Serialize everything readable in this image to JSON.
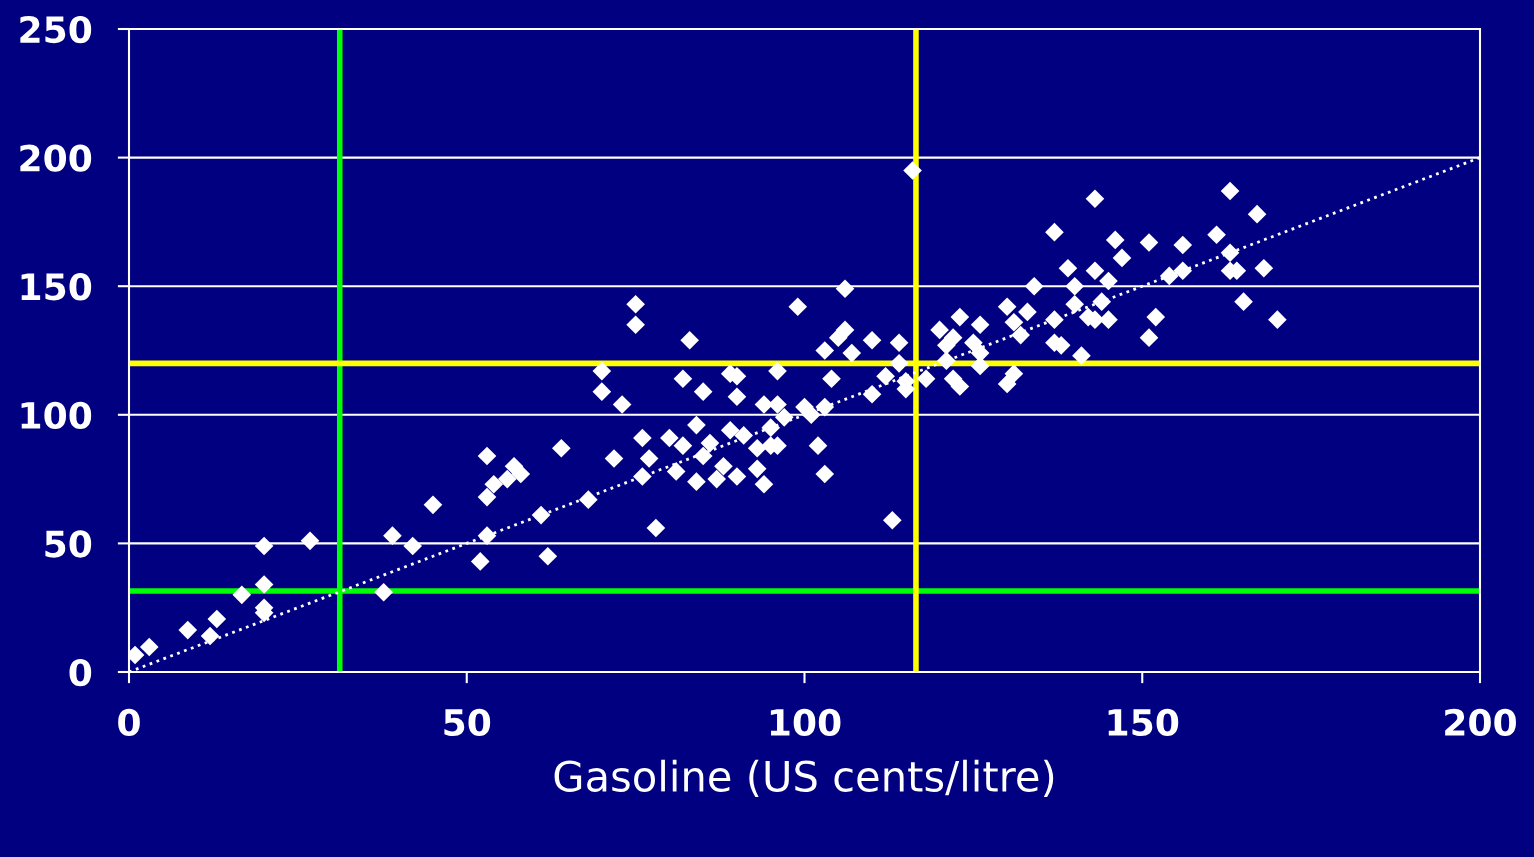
{
  "chart_data": {
    "type": "scatter",
    "xlabel": "Gasoline (US cents/litre)",
    "xlim": [
      0,
      200
    ],
    "xticks": [
      0,
      50,
      100,
      150,
      200
    ],
    "ylim": [
      0,
      250
    ],
    "yticks": [
      0,
      50,
      100,
      150,
      200,
      250
    ],
    "grid": "y",
    "marker": "diamond",
    "legend": false,
    "series": [
      {
        "color": "#ffffff",
        "x": [
          0.9,
          3,
          8.7,
          12,
          13,
          16.7,
          20,
          20,
          20,
          20,
          26.8,
          37.7,
          39,
          42,
          45,
          52,
          53,
          53,
          53,
          54,
          56,
          57,
          58,
          61,
          62,
          64,
          68,
          70,
          70,
          71.8,
          73,
          75,
          75,
          76,
          76,
          77,
          78,
          80,
          81,
          82,
          82,
          83,
          84,
          84,
          85,
          85,
          86,
          87,
          88,
          89,
          90,
          90,
          89,
          90,
          91,
          93,
          93,
          94,
          94,
          95,
          96,
          95,
          96,
          96,
          97,
          99,
          100,
          101,
          102,
          103,
          103,
          103,
          104,
          105,
          106,
          106,
          107,
          110,
          110,
          112,
          113,
          114,
          114,
          115,
          115,
          116,
          118,
          120,
          121,
          121,
          122,
          122,
          123,
          123,
          125,
          126,
          126,
          126,
          130,
          130,
          131,
          131,
          132,
          133,
          134,
          137,
          137,
          137,
          138,
          139,
          140,
          140,
          141,
          142,
          143,
          143,
          143,
          144,
          145,
          145,
          146,
          147,
          151,
          151,
          152,
          154,
          156,
          156,
          161,
          163,
          163,
          163,
          164,
          165,
          167,
          168,
          170
        ],
        "values": [
          6.6,
          9.7,
          16.3,
          14,
          20.6,
          30,
          23,
          25,
          34,
          49,
          51,
          31,
          53,
          49,
          65,
          43,
          53,
          68,
          84,
          73,
          75,
          80,
          77,
          61,
          45,
          87,
          67,
          109,
          117,
          83,
          104,
          143,
          135,
          91,
          76,
          83,
          56,
          91,
          78,
          114,
          88,
          129,
          96,
          74,
          109,
          84,
          89,
          75,
          80,
          94,
          76,
          107,
          116,
          115,
          92,
          79,
          87,
          104,
          73,
          95,
          117,
          88,
          88,
          104,
          99,
          142,
          103,
          100,
          88,
          103,
          77,
          125,
          114,
          130,
          133,
          149,
          124,
          129,
          108,
          115,
          59,
          128,
          120,
          113,
          110,
          195,
          114,
          133,
          127,
          121,
          114,
          130,
          111,
          138,
          128,
          135,
          124,
          119,
          142,
          112,
          116,
          136,
          131,
          140,
          150,
          171,
          137,
          128,
          127,
          157,
          150,
          143,
          123,
          138,
          184,
          137,
          156,
          144,
          137,
          152,
          168,
          161,
          167,
          130,
          138,
          154,
          166,
          156,
          170,
          187,
          163,
          156,
          156,
          144,
          178,
          157,
          137
        ]
      },
      {
        "type": "line",
        "color": "#ffffff",
        "line_style": "dotted",
        "marker": "none",
        "x": [
          0,
          200
        ],
        "values": [
          0,
          200
        ]
      }
    ],
    "ref_lines": [
      {
        "axis": "x",
        "value": 31.2,
        "color": "#00ff00",
        "line_style": "solid"
      },
      {
        "axis": "y",
        "value": 31.5,
        "color": "#00ff00",
        "line_style": "solid"
      },
      {
        "axis": "x",
        "value": 116.5,
        "color": "#ffff00",
        "line_style": "solid"
      },
      {
        "axis": "y",
        "value": 120,
        "color": "#ffff00",
        "line_style": "solid"
      }
    ]
  }
}
